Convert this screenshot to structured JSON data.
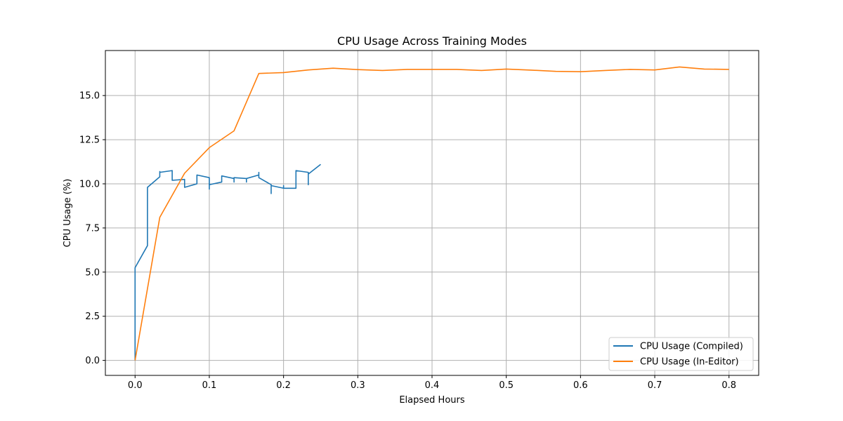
{
  "chart_data": {
    "type": "line",
    "title": "CPU Usage Across Training Modes",
    "xlabel": "Elapsed Hours",
    "ylabel": "CPU Usage (%)",
    "xlim": [
      -0.04,
      0.84
    ],
    "ylim": [
      -0.85,
      17.55
    ],
    "xticks": [
      0.0,
      0.1,
      0.2,
      0.3,
      0.4,
      0.5,
      0.6,
      0.7,
      0.8
    ],
    "xtick_labels": [
      "0.0",
      "0.1",
      "0.2",
      "0.3",
      "0.4",
      "0.5",
      "0.6",
      "0.7",
      "0.8"
    ],
    "yticks": [
      0.0,
      2.5,
      5.0,
      7.5,
      10.0,
      12.5,
      15.0
    ],
    "ytick_labels": [
      "0.0",
      "2.5",
      "5.0",
      "7.5",
      "10.0",
      "12.5",
      "15.0"
    ],
    "grid": true,
    "legend_position": "bottom-right",
    "series": [
      {
        "name": "CPU Usage (Compiled)",
        "color": "#1f77b4",
        "x": [
          0.0,
          0.0,
          0.0167,
          0.0167,
          0.0333,
          0.0333,
          0.0333,
          0.0333,
          0.05,
          0.05,
          0.0667,
          0.0667,
          0.0833,
          0.0833,
          0.1,
          0.1,
          0.1,
          0.1167,
          0.1167,
          0.1333,
          0.1333,
          0.1333,
          0.15,
          0.15,
          0.15,
          0.1667,
          0.1667,
          0.1667,
          0.1833,
          0.1833,
          0.1833,
          0.2,
          0.2,
          0.2,
          0.2167,
          0.2167,
          0.2333,
          0.2333,
          0.2333,
          0.25
        ],
        "y": [
          0.0,
          5.25,
          6.5,
          9.8,
          10.4,
          10.7,
          10.55,
          10.65,
          10.75,
          10.2,
          10.25,
          9.8,
          10.0,
          10.5,
          10.35,
          9.7,
          9.95,
          10.1,
          10.45,
          10.3,
          10.1,
          10.35,
          10.3,
          10.1,
          10.3,
          10.5,
          10.65,
          10.35,
          9.95,
          9.45,
          9.9,
          9.75,
          9.9,
          9.75,
          9.75,
          10.75,
          10.65,
          9.95,
          10.55,
          11.1
        ]
      },
      {
        "name": "CPU Usage (In-Editor)",
        "color": "#ff7f0e",
        "x": [
          0.0,
          0.0333,
          0.0667,
          0.1,
          0.1333,
          0.1667,
          0.2,
          0.2333,
          0.2667,
          0.3,
          0.3333,
          0.3667,
          0.4,
          0.4333,
          0.4667,
          0.5,
          0.5333,
          0.5667,
          0.6,
          0.6333,
          0.6667,
          0.7,
          0.7333,
          0.7667,
          0.8
        ],
        "y": [
          0.0,
          8.1,
          10.6,
          12.05,
          13.0,
          16.25,
          16.3,
          16.45,
          16.55,
          16.47,
          16.42,
          16.48,
          16.48,
          16.48,
          16.42,
          16.5,
          16.44,
          16.37,
          16.35,
          16.42,
          16.48,
          16.45,
          16.62,
          16.5,
          16.48
        ]
      }
    ]
  }
}
